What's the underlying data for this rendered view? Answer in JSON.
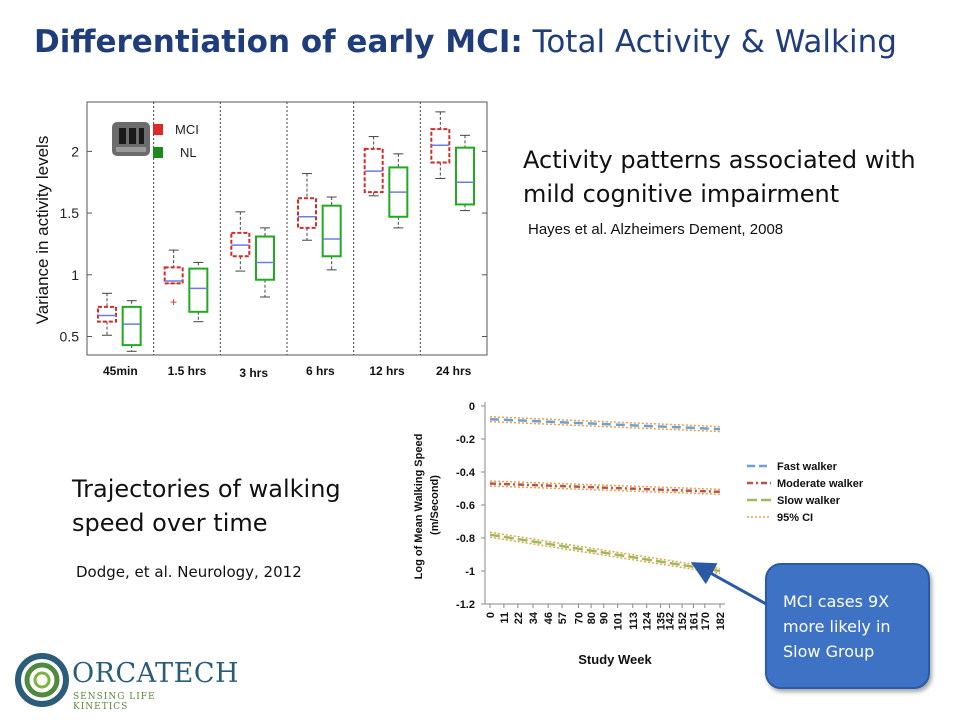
{
  "slide": {
    "title_bold": "Differentiation of early MCI:",
    "title_rest": " Total Activity & Walking"
  },
  "activity": {
    "heading_line1": "Activity patterns associated with",
    "heading_line2": "mild cognitive impairment",
    "citation": "Hayes et al. Alzheimers Dement, 2008"
  },
  "walking": {
    "heading_line1": "Trajectories of walking",
    "heading_line2": "speed over time",
    "citation": "Dodge, et al. Neurology, 2012"
  },
  "callout": {
    "line1": "MCI cases 9X",
    "line2": "more likely in",
    "line3": "Slow Group"
  },
  "logo": {
    "name": "ORCATECH",
    "tagline": "SENSING LIFE KINETICS"
  },
  "colors": {
    "title": "#1f3d7a",
    "mci": "#d42a2a",
    "nl": "#1faa1f",
    "median": "#6a7ee0",
    "fast": "#6f9fd6",
    "moderate": "#c0504d",
    "slow": "#9bbb59",
    "ci": "#e8a34a",
    "callout": "#3e72c4"
  },
  "chart_data": [
    {
      "type": "box",
      "title": "",
      "xlabel": "",
      "ylabel": "Variance in activity levels",
      "ylim": [
        0.35,
        2.4
      ],
      "yticks": [
        0.5,
        1,
        1.5,
        2
      ],
      "categories": [
        "45min",
        "1.5 hrs",
        "3 hrs",
        "6 hrs",
        "12 hrs",
        "24 hrs"
      ],
      "legend": [
        "MCI",
        "NL"
      ],
      "legend_position": "top-left",
      "series": [
        {
          "name": "MCI",
          "boxes": [
            {
              "min": 0.51,
              "q1": 0.62,
              "median": 0.67,
              "q3": 0.74,
              "max": 0.85
            },
            {
              "min": 0.93,
              "q1": 0.93,
              "median": 0.95,
              "q3": 1.06,
              "max": 1.2,
              "outliers": [
                0.78
              ]
            },
            {
              "min": 1.03,
              "q1": 1.15,
              "median": 1.24,
              "q3": 1.34,
              "max": 1.51
            },
            {
              "min": 1.28,
              "q1": 1.38,
              "median": 1.47,
              "q3": 1.62,
              "max": 1.82
            },
            {
              "min": 1.64,
              "q1": 1.67,
              "median": 1.84,
              "q3": 2.02,
              "max": 2.12
            },
            {
              "min": 1.78,
              "q1": 1.91,
              "median": 2.05,
              "q3": 2.18,
              "max": 2.32
            }
          ]
        },
        {
          "name": "NL",
          "boxes": [
            {
              "min": 0.38,
              "q1": 0.43,
              "median": 0.6,
              "q3": 0.74,
              "max": 0.79
            },
            {
              "min": 0.62,
              "q1": 0.7,
              "median": 0.89,
              "q3": 1.05,
              "max": 1.1
            },
            {
              "min": 0.82,
              "q1": 0.96,
              "median": 1.1,
              "q3": 1.31,
              "max": 1.38
            },
            {
              "min": 1.04,
              "q1": 1.15,
              "median": 1.29,
              "q3": 1.56,
              "max": 1.63
            },
            {
              "min": 1.38,
              "q1": 1.47,
              "median": 1.67,
              "q3": 1.87,
              "max": 1.98
            },
            {
              "min": 1.52,
              "q1": 1.57,
              "median": 1.75,
              "q3": 2.03,
              "max": 2.13
            }
          ]
        }
      ]
    },
    {
      "type": "line",
      "title": "",
      "xlabel": "Study Week",
      "ylabel": "Log of Mean Walking Speed (m/Second)",
      "ylim": [
        -1.2,
        0
      ],
      "yticks": [
        0,
        -0.2,
        -0.4,
        -0.6,
        -0.8,
        -1,
        -1.2
      ],
      "x": [
        0,
        11,
        22,
        34,
        46,
        57,
        70,
        80,
        90,
        101,
        113,
        124,
        135,
        142,
        152,
        161,
        170,
        182
      ],
      "legend_position": "right",
      "series": [
        {
          "name": "Fast walker",
          "start": -0.08,
          "end": -0.14
        },
        {
          "name": "Moderate walker",
          "start": -0.47,
          "end": -0.52
        },
        {
          "name": "Slow walker",
          "start": -0.78,
          "end": -1.0
        },
        {
          "name": "95% CI",
          "band_width": 0.015
        }
      ]
    }
  ]
}
